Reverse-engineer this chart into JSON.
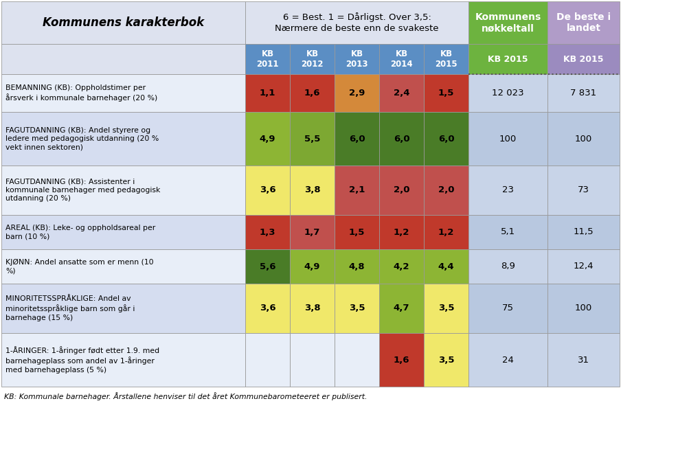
{
  "title_left": "Kommunens karakterbok",
  "title_center": "6 = Best. 1 = Dårligst. Over 3,5:\nNærmere de beste enn de svakeste",
  "title_green": "Kommunens\nnøkkeltall",
  "title_blue": "De beste i\nlandet",
  "col_headers_kb": [
    "KB\n2011",
    "KB\n2012",
    "KB\n2013",
    "KB\n2014",
    "KB\n2015"
  ],
  "col_header_nok": "KB 2015",
  "col_header_best": "KB 2015",
  "rows": [
    {
      "label": "BEMANNING (KB): Oppholdstimer per\nårsverk i kommunale barnehager (20 %)",
      "values": [
        "1,1",
        "1,6",
        "2,9",
        "2,4",
        "1,5"
      ],
      "nok": "12 023",
      "best": "7 831",
      "colors": [
        "#c0392b",
        "#c0392b",
        "#d4893a",
        "#c0504d",
        "#c0392b"
      ]
    },
    {
      "label": "FAGUTDANNING (KB): Andel styrere og\nledere med pedagogisk utdanning (20 %\nvekt innen sektoren)",
      "values": [
        "4,9",
        "5,5",
        "6,0",
        "6,0",
        "6,0"
      ],
      "nok": "100",
      "best": "100",
      "colors": [
        "#8db534",
        "#7da832",
        "#4a7c27",
        "#4a7c27",
        "#4a7c27"
      ]
    },
    {
      "label": "FAGUTDANNING (KB): Assistenter i\nkommunale barnehager med pedagogisk\nutdanning (20 %)",
      "values": [
        "3,6",
        "3,8",
        "2,1",
        "2,0",
        "2,0"
      ],
      "nok": "23",
      "best": "73",
      "colors": [
        "#f0e86a",
        "#f0e86a",
        "#c0504d",
        "#c0504d",
        "#c0504d"
      ]
    },
    {
      "label": "AREAL (KB): Leke- og oppholdsareal per\nbarn (10 %)",
      "values": [
        "1,3",
        "1,7",
        "1,5",
        "1,2",
        "1,2"
      ],
      "nok": "5,1",
      "best": "11,5",
      "colors": [
        "#c0392b",
        "#c0504d",
        "#c0392b",
        "#c0392b",
        "#c0392b"
      ]
    },
    {
      "label": "KJØNN: Andel ansatte som er menn (10\n%)",
      "values": [
        "5,6",
        "4,9",
        "4,8",
        "4,2",
        "4,4"
      ],
      "nok": "8,9",
      "best": "12,4",
      "colors": [
        "#4a7c27",
        "#8db534",
        "#8db534",
        "#8db534",
        "#8db534"
      ]
    },
    {
      "label": "MINORITETSSPRÅKLIGE: Andel av\nminoritetsspråklige barn som går i\nbarnehage (15 %)",
      "values": [
        "3,6",
        "3,8",
        "3,5",
        "4,7",
        "3,5"
      ],
      "nok": "75",
      "best": "100",
      "colors": [
        "#f0e86a",
        "#f0e86a",
        "#f0e86a",
        "#8db534",
        "#f0e86a"
      ]
    },
    {
      "label": "1-ÅRINGER: 1-åringer født etter 1.9. med\nbarnehageplass som andel av 1-åringer\nmed barnehageplass (5 %)",
      "values": [
        "",
        "",
        "",
        "1,6",
        "3,5"
      ],
      "nok": "24",
      "best": "31",
      "colors": [
        "#e8eef8",
        "#e8eef8",
        "#e8eef8",
        "#c0392b",
        "#f0e86a"
      ]
    }
  ],
  "footer": "KB: Kommunale barnehager. Årstallene henviser til det året Kommunebarometeeret er publisert.",
  "bg_title_left": "#dde2ef",
  "bg_title_center": "#dde2ef",
  "bg_title_green": "#6db33f",
  "bg_title_purple": "#b09cc8",
  "bg_subheader_kb": "#5b8ec4",
  "bg_subheader_green": "#6db33f",
  "bg_subheader_purple": "#9b8bbf",
  "row_bg": [
    "#e8eef8",
    "#d5ddf0",
    "#e8eef8",
    "#d5ddf0",
    "#e8eef8",
    "#d5ddf0",
    "#e8eef8"
  ],
  "nok_bg": [
    "#c8d4e8",
    "#b8c8e0",
    "#c8d4e8",
    "#b8c8e0",
    "#c8d4e8",
    "#b8c8e0",
    "#c8d4e8"
  ],
  "best_bg": [
    "#c8d4e8",
    "#b8c8e0",
    "#c8d4e8",
    "#b8c8e0",
    "#c8d4e8",
    "#b8c8e0",
    "#c8d4e8"
  ]
}
